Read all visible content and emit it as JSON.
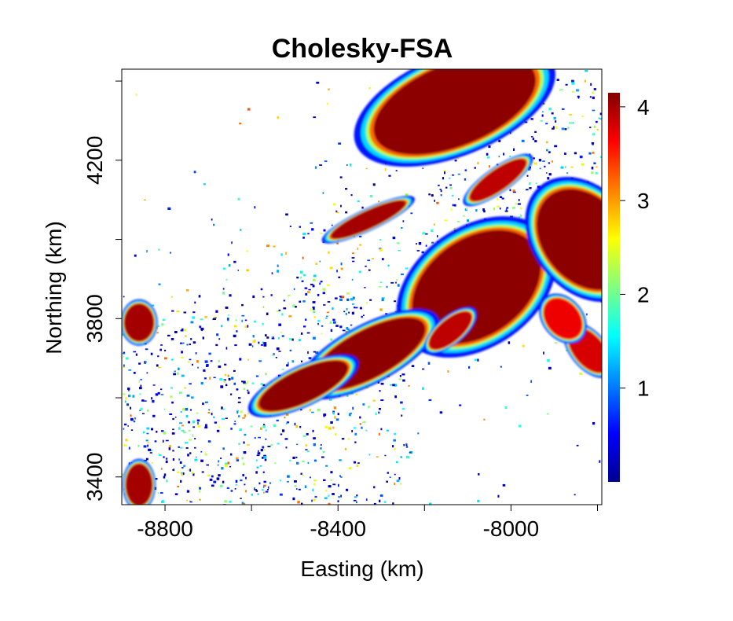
{
  "title": "Cholesky-FSA",
  "x_axis": {
    "label": "Easting (km)",
    "ticks": [
      {
        "value": -8800,
        "label": "-8800"
      },
      {
        "value": -8400,
        "label": "-8400"
      },
      {
        "value": -8000,
        "label": "-8000"
      }
    ],
    "minor_ticks": [
      -8600,
      -8200,
      -7800
    ],
    "range": [
      -8900,
      -7790
    ]
  },
  "y_axis": {
    "label": "Northing (km)",
    "ticks": [
      {
        "value": 3400,
        "label": "3400"
      },
      {
        "value": 3800,
        "label": "3800"
      },
      {
        "value": 4200,
        "label": "4200"
      }
    ],
    "minor_ticks": [
      3600,
      4000,
      4400
    ],
    "range": [
      3330,
      4430
    ]
  },
  "colorbar": {
    "min": 0,
    "max": 4.15,
    "ticks": [
      {
        "value": 1,
        "label": "1"
      },
      {
        "value": 2,
        "label": "2"
      },
      {
        "value": 3,
        "label": "3"
      },
      {
        "value": 4,
        "label": "4"
      }
    ],
    "colors": [
      "#00008f",
      "#0000ff",
      "#0080ff",
      "#00ffff",
      "#80ff80",
      "#ffff00",
      "#ff8000",
      "#ff0000",
      "#800000"
    ]
  },
  "chart_data": {
    "type": "heatmap",
    "title": "Cholesky-FSA",
    "xlabel": "Easting (km)",
    "ylabel": "Northing (km)",
    "xlim": [
      -8900,
      -7790
    ],
    "ylim": [
      3330,
      4430
    ],
    "value_range": [
      0,
      4.15
    ],
    "colormap": "jet",
    "background": "white (no data)",
    "high_regions": [
      {
        "easting": -8130,
        "northing": 4340,
        "value": 4.1
      },
      {
        "easting": -8080,
        "northing": 3880,
        "value": 4.1
      },
      {
        "easting": -8330,
        "northing": 3710,
        "value": 4.1
      },
      {
        "easting": -8480,
        "northing": 3630,
        "value": 4.1
      },
      {
        "easting": -7830,
        "northing": 4000,
        "value": 4.1
      },
      {
        "easting": -8330,
        "northing": 4050,
        "value": 4.0
      },
      {
        "easting": -8030,
        "northing": 4150,
        "value": 3.9
      },
      {
        "easting": -8860,
        "northing": 3790,
        "value": 4.0
      },
      {
        "easting": -8860,
        "northing": 3380,
        "value": 4.0
      },
      {
        "easting": -7820,
        "northing": 3720,
        "value": 3.8
      },
      {
        "easting": -8140,
        "northing": 3770,
        "value": 3.9
      },
      {
        "easting": -7880,
        "northing": 3800,
        "value": 3.7
      }
    ]
  }
}
